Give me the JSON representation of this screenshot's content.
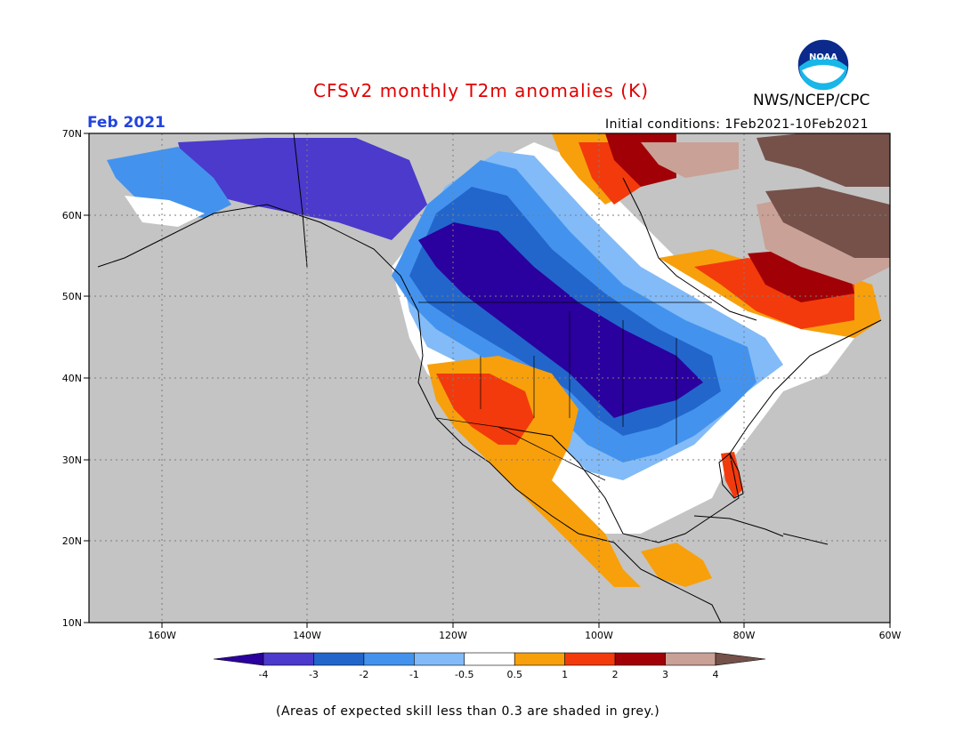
{
  "title": "CFSv2 monthly T2m anomalies (K)",
  "agency": "NWS/NCEP/CPC",
  "logo_text": "NOAA",
  "valid_month": "Feb 2021",
  "initial_conditions": "Initial conditions: 1Feb2021-10Feb2021",
  "footnote": "(Areas of expected skill less than 0.3 are shaded in grey.)",
  "colors": {
    "title": "#e00000",
    "month": "#2244dd",
    "land_grey": "#c4c4c4",
    "ocean_grey": "#c4c4c4"
  },
  "map": {
    "lon_ticks": [
      "160W",
      "140W",
      "120W",
      "100W",
      "80W",
      "60W"
    ],
    "lat_ticks": [
      "70N",
      "60N",
      "50N",
      "40N",
      "30N",
      "20N",
      "10N"
    ],
    "gridlines": "dotted"
  },
  "legend": {
    "bins": [
      {
        "color": "#2a009e"
      },
      {
        "color": "#4b3acc"
      },
      {
        "color": "#2266cc"
      },
      {
        "color": "#4393ee"
      },
      {
        "color": "#82bbf7"
      },
      {
        "color": "#ffffff"
      },
      {
        "color": "#f7a00c"
      },
      {
        "color": "#f33a0c"
      },
      {
        "color": "#a10006"
      },
      {
        "color": "#c9a196"
      },
      {
        "color": "#75514a"
      }
    ],
    "labels": [
      "-4",
      "-3",
      "-2",
      "-1",
      "-0.5",
      "0.5",
      "1",
      "2",
      "3",
      "4"
    ]
  }
}
